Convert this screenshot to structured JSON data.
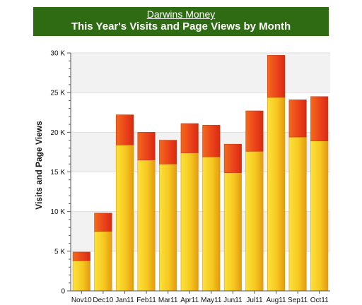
{
  "header": {
    "site_name": "Darwins Money",
    "title": "This Year's Visits and Page Views by Month"
  },
  "colors": {
    "header_bg": "#2f6b13",
    "visits_fill": "#f3c21f",
    "pageviews_fill": "#ee5a1c"
  },
  "chart_data": {
    "type": "bar",
    "stacked": true,
    "title": "This Year's Visits and Page Views by Month",
    "xlabel": "",
    "ylabel": "Visits and Page Views",
    "categories": [
      "Nov10",
      "Dec10",
      "Jan11",
      "Feb11",
      "Mar11",
      "Apr11",
      "May11",
      "Jun11",
      "Jul11",
      "Aug11",
      "Sep11",
      "Oct11"
    ],
    "series": [
      {
        "values": [
          3800,
          7500,
          18400,
          16500,
          16000,
          17400,
          16900,
          14900,
          17600,
          24400,
          19400,
          18900
        ]
      },
      {
        "values": [
          1100,
          2300,
          3800,
          3500,
          3000,
          3700,
          4000,
          3600,
          5100,
          5300,
          4700,
          5600
        ]
      }
    ],
    "ylim": [
      0,
      30000
    ],
    "yticks": [
      0,
      5000,
      10000,
      15000,
      20000,
      25000,
      30000
    ],
    "ytick_labels": [
      "0",
      "5 K",
      "10 K",
      "15 K",
      "20 K",
      "25 K",
      "30 K"
    ],
    "grid": true,
    "legend": "none"
  }
}
